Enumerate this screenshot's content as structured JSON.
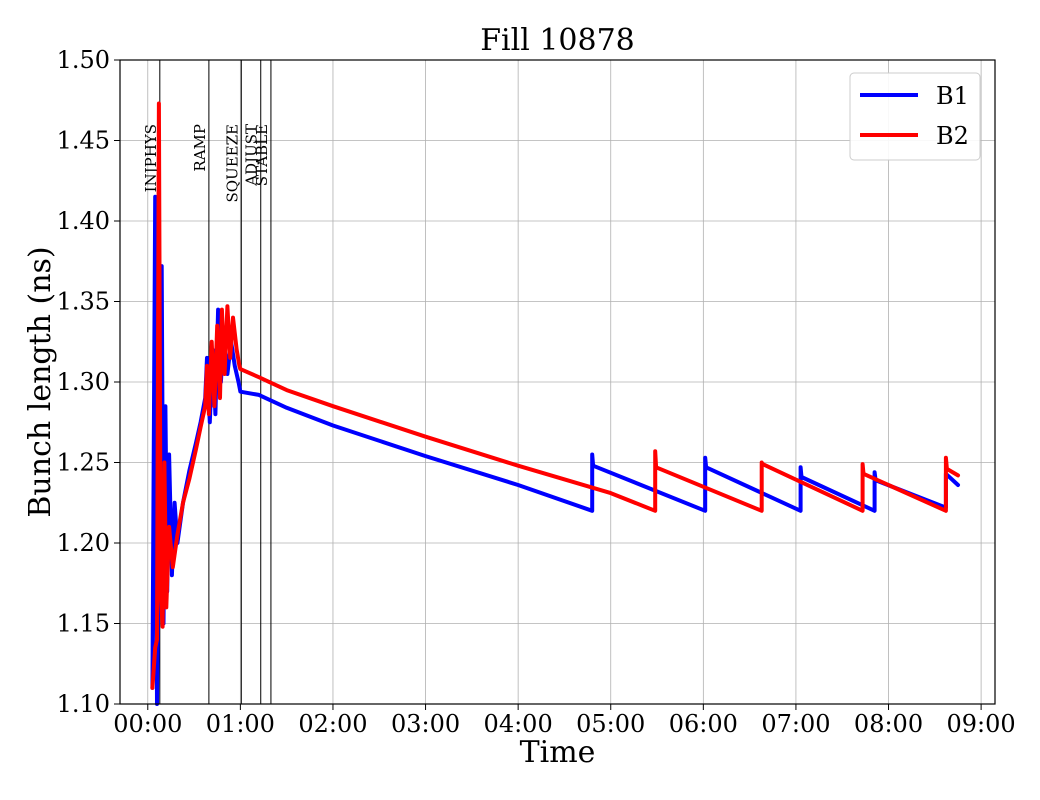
{
  "chart_data": {
    "type": "line",
    "title": "Fill 10878",
    "xlabel": "Time",
    "ylabel": "Bunch length (ns)",
    "x_unit": "hours",
    "xlim": [
      -0.3,
      9.15
    ],
    "ylim": [
      1.1,
      1.5
    ],
    "grid": true,
    "legend_position": "top-right",
    "x_ticks": [
      {
        "value": 0,
        "label": "00:00"
      },
      {
        "value": 1,
        "label": "01:00"
      },
      {
        "value": 2,
        "label": "02:00"
      },
      {
        "value": 3,
        "label": "03:00"
      },
      {
        "value": 4,
        "label": "04:00"
      },
      {
        "value": 5,
        "label": "05:00"
      },
      {
        "value": 6,
        "label": "06:00"
      },
      {
        "value": 7,
        "label": "07:00"
      },
      {
        "value": 8,
        "label": "08:00"
      },
      {
        "value": 9,
        "label": "09:00"
      }
    ],
    "y_ticks": [
      {
        "value": 1.1,
        "label": "1.10"
      },
      {
        "value": 1.15,
        "label": "1.15"
      },
      {
        "value": 1.2,
        "label": "1.20"
      },
      {
        "value": 1.25,
        "label": "1.25"
      },
      {
        "value": 1.3,
        "label": "1.30"
      },
      {
        "value": 1.35,
        "label": "1.35"
      },
      {
        "value": 1.4,
        "label": "1.40"
      },
      {
        "value": 1.45,
        "label": "1.45"
      },
      {
        "value": 1.5,
        "label": "1.50"
      }
    ],
    "phases": [
      {
        "label": "INJPHYS",
        "x": 0.13
      },
      {
        "label": "RAMP",
        "x": 0.66
      },
      {
        "label": "SQUEEZE",
        "x": 1.01
      },
      {
        "label": "ADJUST",
        "x": 1.22
      },
      {
        "label": "STABLE",
        "x": 1.33
      }
    ],
    "series": [
      {
        "name": "B1",
        "color": "#0000ff",
        "points": [
          [
            0.05,
            1.11
          ],
          [
            0.08,
            1.415
          ],
          [
            0.1,
            1.1
          ],
          [
            0.13,
            1.25
          ],
          [
            0.15,
            1.372
          ],
          [
            0.17,
            1.15
          ],
          [
            0.19,
            1.285
          ],
          [
            0.21,
            1.17
          ],
          [
            0.23,
            1.255
          ],
          [
            0.26,
            1.18
          ],
          [
            0.29,
            1.225
          ],
          [
            0.32,
            1.2
          ],
          [
            0.38,
            1.225
          ],
          [
            0.45,
            1.245
          ],
          [
            0.52,
            1.262
          ],
          [
            0.57,
            1.275
          ],
          [
            0.62,
            1.29
          ],
          [
            0.64,
            1.315
          ],
          [
            0.67,
            1.275
          ],
          [
            0.7,
            1.32
          ],
          [
            0.73,
            1.28
          ],
          [
            0.76,
            1.345
          ],
          [
            0.79,
            1.3
          ],
          [
            0.82,
            1.33
          ],
          [
            0.86,
            1.305
          ],
          [
            0.9,
            1.325
          ],
          [
            0.94,
            1.31
          ],
          [
            0.98,
            1.3
          ],
          [
            1.0,
            1.294
          ],
          [
            1.2,
            1.292
          ],
          [
            1.5,
            1.284
          ],
          [
            2.0,
            1.273
          ],
          [
            3.0,
            1.254
          ],
          [
            4.0,
            1.236
          ],
          [
            4.8,
            1.22
          ],
          [
            4.8,
            1.255
          ],
          [
            4.81,
            1.248
          ],
          [
            6.02,
            1.22
          ],
          [
            6.02,
            1.253
          ],
          [
            6.03,
            1.247
          ],
          [
            7.05,
            1.22
          ],
          [
            7.05,
            1.247
          ],
          [
            7.06,
            1.241
          ],
          [
            7.85,
            1.22
          ],
          [
            7.85,
            1.244
          ],
          [
            7.86,
            1.239
          ],
          [
            8.62,
            1.222
          ],
          [
            8.62,
            1.243
          ],
          [
            8.75,
            1.236
          ]
        ]
      },
      {
        "name": "B2",
        "color": "#ff0000",
        "points": [
          [
            0.05,
            1.11
          ],
          [
            0.08,
            1.135
          ],
          [
            0.1,
            1.14
          ],
          [
            0.12,
            1.473
          ],
          [
            0.14,
            1.17
          ],
          [
            0.16,
            1.148
          ],
          [
            0.18,
            1.25
          ],
          [
            0.2,
            1.16
          ],
          [
            0.23,
            1.21
          ],
          [
            0.27,
            1.185
          ],
          [
            0.32,
            1.205
          ],
          [
            0.38,
            1.225
          ],
          [
            0.45,
            1.24
          ],
          [
            0.52,
            1.258
          ],
          [
            0.57,
            1.272
          ],
          [
            0.62,
            1.285
          ],
          [
            0.64,
            1.31
          ],
          [
            0.66,
            1.28
          ],
          [
            0.69,
            1.325
          ],
          [
            0.72,
            1.285
          ],
          [
            0.75,
            1.335
          ],
          [
            0.78,
            1.29
          ],
          [
            0.8,
            1.345
          ],
          [
            0.83,
            1.305
          ],
          [
            0.86,
            1.347
          ],
          [
            0.89,
            1.315
          ],
          [
            0.92,
            1.34
          ],
          [
            0.96,
            1.32
          ],
          [
            0.99,
            1.31
          ],
          [
            1.0,
            1.308
          ],
          [
            1.2,
            1.303
          ],
          [
            1.5,
            1.295
          ],
          [
            2.0,
            1.285
          ],
          [
            3.0,
            1.266
          ],
          [
            4.0,
            1.248
          ],
          [
            5.0,
            1.231
          ],
          [
            5.48,
            1.22
          ],
          [
            5.48,
            1.257
          ],
          [
            5.49,
            1.247
          ],
          [
            6.63,
            1.22
          ],
          [
            6.63,
            1.25
          ],
          [
            6.64,
            1.249
          ],
          [
            7.72,
            1.22
          ],
          [
            7.72,
            1.249
          ],
          [
            7.73,
            1.243
          ],
          [
            8.62,
            1.22
          ],
          [
            8.62,
            1.253
          ],
          [
            8.63,
            1.246
          ],
          [
            8.75,
            1.242
          ]
        ]
      }
    ]
  }
}
